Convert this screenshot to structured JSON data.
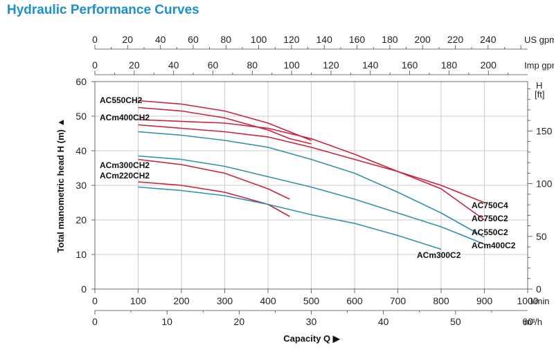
{
  "title": "Hydraulic Performance Curves",
  "chart_data": {
    "type": "line",
    "xlabel": "Capacity Q",
    "ylabel": "Total manometric head H (m)",
    "x_unit": "l/min",
    "y_unit_left": "m",
    "y_unit_right_label": "H",
    "y_unit_right": "[ft]",
    "xlim": [
      0,
      1000
    ],
    "ylim": [
      0,
      60
    ],
    "grid": true,
    "x_ticks": [
      "0",
      "100",
      "200",
      "300",
      "400",
      "500",
      "600",
      "700",
      "800",
      "900",
      "1000"
    ],
    "y_ticks": [
      "0",
      "10",
      "20",
      "30",
      "40",
      "50",
      "60"
    ],
    "secondary_axes": {
      "us_gpm": {
        "unit": "US gpm",
        "ticks": [
          "0",
          "20",
          "40",
          "60",
          "80",
          "100",
          "120",
          "140",
          "160",
          "180",
          "200",
          "220",
          "240"
        ]
      },
      "imp_gpm": {
        "unit": "Imp gpm",
        "ticks": [
          "0",
          "20",
          "40",
          "60",
          "80",
          "100",
          "120",
          "140",
          "160",
          "180",
          "200"
        ]
      },
      "m3h": {
        "unit": "m³/h",
        "ticks": [
          "0",
          "10",
          "20",
          "30",
          "40",
          "50",
          "60"
        ]
      },
      "ft": {
        "ticks": [
          "0",
          "50",
          "100",
          "150"
        ]
      }
    },
    "series": [
      {
        "name": "AC550CH2",
        "color": "#cc1f3a",
        "points": [
          [
            100,
            54.5
          ],
          [
            200,
            53.5
          ],
          [
            300,
            51.5
          ],
          [
            400,
            48
          ],
          [
            450,
            45.5
          ],
          [
            500,
            43
          ]
        ]
      },
      {
        "name": "ACm400CH2",
        "color": "#cc1f3a",
        "points": [
          [
            100,
            52.5
          ],
          [
            200,
            51.5
          ],
          [
            300,
            49.5
          ],
          [
            400,
            46
          ],
          [
            450,
            43.5
          ],
          [
            500,
            42
          ]
        ]
      },
      {
        "name": "ACm300CH2",
        "color": "#cc1f3a",
        "points": [
          [
            100,
            37.5
          ],
          [
            200,
            36
          ],
          [
            300,
            33.5
          ],
          [
            400,
            29
          ],
          [
            450,
            26
          ]
        ]
      },
      {
        "name": "ACm220CH2",
        "color": "#cc1f3a",
        "points": [
          [
            100,
            31
          ],
          [
            200,
            30
          ],
          [
            300,
            28
          ],
          [
            400,
            24.5
          ],
          [
            450,
            21
          ]
        ]
      },
      {
        "name": "AC750C4",
        "color": "#cc1f3a",
        "points": [
          [
            100,
            47.5
          ],
          [
            200,
            46.5
          ],
          [
            300,
            45.5
          ],
          [
            400,
            44
          ],
          [
            500,
            41
          ],
          [
            600,
            37.5
          ],
          [
            700,
            34
          ],
          [
            800,
            30
          ],
          [
            900,
            25
          ]
        ]
      },
      {
        "name": "AC750C2",
        "color": "#cc1f3a",
        "points": [
          [
            100,
            49
          ],
          [
            300,
            48
          ],
          [
            400,
            46.5
          ],
          [
            500,
            43.5
          ],
          [
            600,
            39
          ],
          [
            700,
            34
          ],
          [
            800,
            29
          ],
          [
            900,
            20
          ]
        ]
      },
      {
        "name": "AC550C2",
        "color": "#2e8fae",
        "points": [
          [
            100,
            45.5
          ],
          [
            200,
            44.5
          ],
          [
            300,
            43
          ],
          [
            400,
            41
          ],
          [
            500,
            37.5
          ],
          [
            600,
            33.5
          ],
          [
            700,
            28
          ],
          [
            800,
            22
          ],
          [
            900,
            15
          ]
        ]
      },
      {
        "name": "ACm400C2",
        "color": "#2e8fae",
        "points": [
          [
            100,
            38.5
          ],
          [
            200,
            37.5
          ],
          [
            300,
            35.5
          ],
          [
            400,
            32.5
          ],
          [
            500,
            29.5
          ],
          [
            600,
            26
          ],
          [
            700,
            22
          ],
          [
            800,
            18
          ],
          [
            900,
            13
          ]
        ]
      },
      {
        "name": "ACm300C2",
        "color": "#2e8fae",
        "points": [
          [
            100,
            29.5
          ],
          [
            200,
            28.5
          ],
          [
            300,
            27
          ],
          [
            400,
            24.5
          ],
          [
            500,
            21.5
          ],
          [
            600,
            19
          ],
          [
            700,
            15.5
          ],
          [
            800,
            11.5
          ]
        ]
      }
    ]
  }
}
